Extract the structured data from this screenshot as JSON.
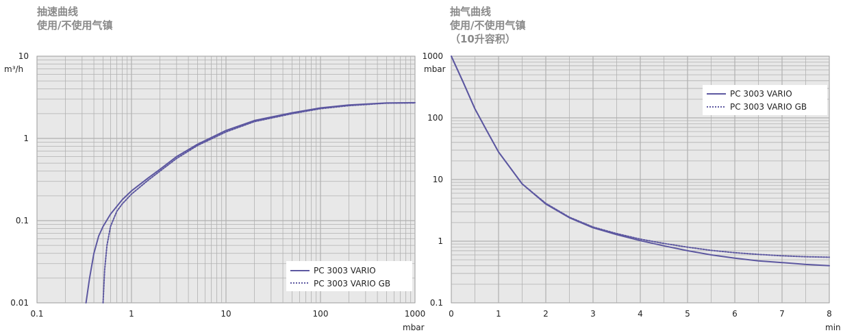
{
  "colors": {
    "plot_bg": "#e8e8e8",
    "grid": "#b0b0b0",
    "series": "#5c57a0"
  },
  "chart_data": [
    {
      "type": "line",
      "title_lines": [
        "抽速曲线",
        "使用/不使用气镇"
      ],
      "x_scale": "log",
      "y_scale": "log",
      "xlim": [
        0.1,
        1000
      ],
      "ylim": [
        0.01,
        10
      ],
      "x_ticks": [
        "0.1",
        "1",
        "10",
        "100",
        "1000"
      ],
      "y_ticks": [
        "0.01",
        "0.1",
        "1",
        "10"
      ],
      "x_unit": "mbar",
      "y_unit": "m³/h",
      "grid": true,
      "legend_position": "bottom-right",
      "series": [
        {
          "name": "PC 3003 VARIO",
          "style": "solid",
          "x": [
            0.33,
            0.36,
            0.4,
            0.45,
            0.5,
            0.6,
            0.8,
            1,
            1.5,
            2,
            3,
            5,
            10,
            20,
            50,
            100,
            200,
            500,
            1000
          ],
          "y": [
            0.01,
            0.02,
            0.04,
            0.065,
            0.085,
            0.12,
            0.18,
            0.23,
            0.33,
            0.42,
            0.6,
            0.85,
            1.25,
            1.65,
            2.05,
            2.35,
            2.55,
            2.7,
            2.72
          ]
        },
        {
          "name": "PC 3003 VARIO GB",
          "style": "dotted",
          "x": [
            0.5,
            0.52,
            0.55,
            0.6,
            0.7,
            0.8,
            1,
            1.5,
            2,
            3,
            5,
            10,
            20,
            50,
            100,
            200,
            500,
            1000
          ],
          "y": [
            0.01,
            0.025,
            0.05,
            0.085,
            0.13,
            0.16,
            0.21,
            0.31,
            0.4,
            0.57,
            0.82,
            1.2,
            1.6,
            2.0,
            2.3,
            2.5,
            2.68,
            2.7
          ]
        }
      ]
    },
    {
      "type": "line",
      "title_lines": [
        "抽气曲线",
        "使用/不使用气镇",
        "（10升容积）"
      ],
      "x_scale": "linear",
      "y_scale": "log",
      "xlim": [
        0,
        8
      ],
      "ylim": [
        0.1,
        1000
      ],
      "x_ticks": [
        "0",
        "1",
        "2",
        "3",
        "4",
        "5",
        "6",
        "7",
        "8"
      ],
      "y_ticks": [
        "0.1",
        "1",
        "10",
        "100",
        "1000"
      ],
      "x_unit": "min",
      "y_unit": "mbar",
      "grid": true,
      "legend_position": "top-right",
      "series": [
        {
          "name": "PC 3003 VARIO",
          "style": "solid",
          "x": [
            0,
            0.25,
            0.5,
            0.75,
            1,
            1.5,
            2,
            2.5,
            3,
            3.5,
            4,
            4.5,
            5,
            5.5,
            6,
            6.5,
            7,
            7.5,
            8
          ],
          "y": [
            1000,
            380,
            140,
            62,
            28,
            8.5,
            4.0,
            2.4,
            1.65,
            1.28,
            1.02,
            0.84,
            0.7,
            0.6,
            0.53,
            0.48,
            0.45,
            0.42,
            0.4
          ]
        },
        {
          "name": "PC 3003 VARIO GB",
          "style": "dotted",
          "x": [
            0,
            0.25,
            0.5,
            0.75,
            1,
            1.5,
            2,
            2.5,
            3,
            3.5,
            4,
            4.5,
            5,
            5.5,
            6,
            6.5,
            7,
            7.5,
            8
          ],
          "y": [
            1000,
            380,
            140,
            62,
            28,
            8.5,
            4.1,
            2.45,
            1.7,
            1.33,
            1.08,
            0.92,
            0.8,
            0.71,
            0.65,
            0.61,
            0.58,
            0.56,
            0.55
          ]
        }
      ]
    }
  ]
}
